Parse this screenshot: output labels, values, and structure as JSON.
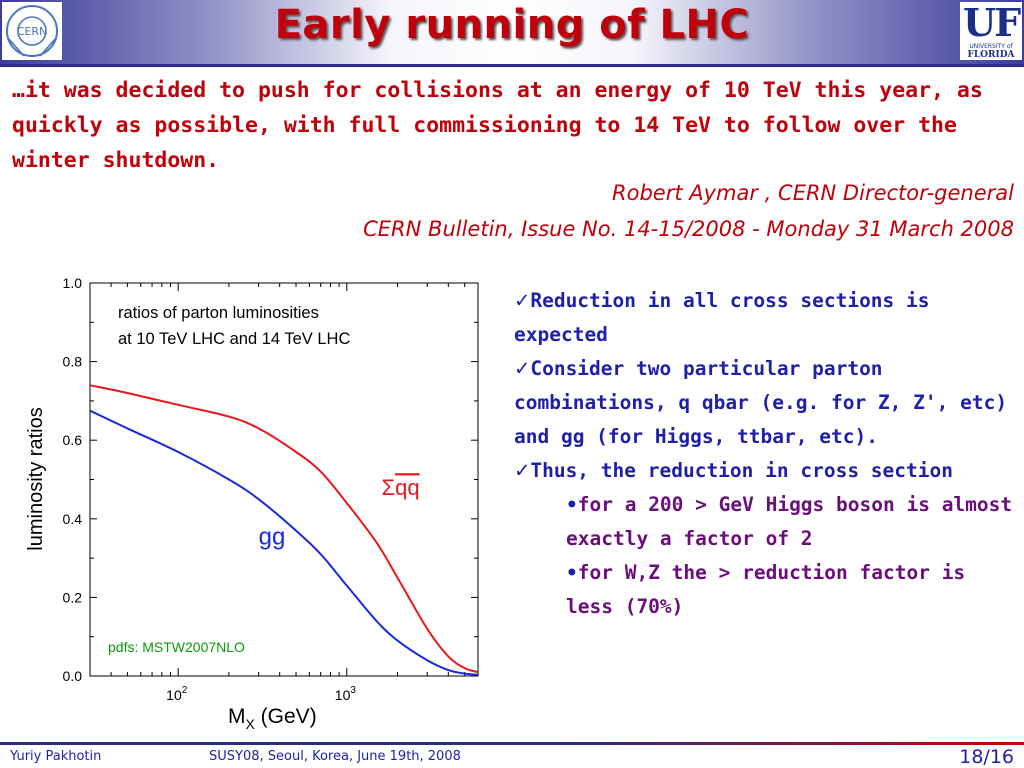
{
  "slide": {
    "title": "Early running of LHC",
    "logos": {
      "left": "CERN",
      "right_main": "UF",
      "right_sub": "UNIVERSITY of",
      "right_sub2": "FLORIDA"
    }
  },
  "quote": {
    "text": "…it was decided to push for collisions at an energy of 10 TeV this year, as quickly as possible, with full commissioning to 14 TeV to follow over the winter shutdown.",
    "author": "Robert Aymar , CERN Director-general",
    "source": "CERN Bulletin, Issue No. 14-15/2008 - Monday 31 March 2008"
  },
  "bullets": {
    "item1": "Reduction in all cross sections is expected",
    "item2": "Consider two particular parton combinations, q qbar (e.g. for Z, Z', etc) and gg (for Higgs, ttbar, etc).",
    "item3": "Thus, the reduction in cross section",
    "sub1": "for a 200 > GeV Higgs boson is almost exactly a factor of 2",
    "sub2": "for W,Z the > reduction factor is less (70%)",
    "check_glyph": "✓",
    "dot_glyph": "•"
  },
  "footer": {
    "author": "Yuriy Pakhotin",
    "event": "SUSY08, Seoul, Korea, June 19th, 2008",
    "page": "18/16"
  },
  "chart_data": {
    "type": "line",
    "title_line1": "ratios of parton luminosities",
    "title_line2": "at 10 TeV LHC and 14 TeV LHC",
    "annotation": "pdfs: MSTW2007NLO",
    "xlabel_main": "M",
    "xlabel_sub": "X",
    "xlabel_unit": " (GeV)",
    "ylabel": "luminosity ratios",
    "x_scale": "log",
    "xlim": [
      30,
      6000
    ],
    "ylim": [
      0.0,
      1.0
    ],
    "y_ticks": [
      "0.0",
      "0.2",
      "0.4",
      "0.6",
      "0.8",
      "1.0"
    ],
    "x_ticks": [
      {
        "base": "10",
        "exp": "2",
        "value": 100
      },
      {
        "base": "10",
        "exp": "3",
        "value": 1000
      }
    ],
    "grid": false,
    "series": [
      {
        "name": "Σqq̄",
        "label_main": "Σ",
        "label_qq": "qq",
        "color": "#e8171a",
        "x": [
          30,
          50,
          100,
          200,
          300,
          500,
          700,
          1000,
          1500,
          2000,
          3000,
          4000,
          5000,
          6000
        ],
        "y": [
          0.74,
          0.72,
          0.69,
          0.66,
          0.63,
          0.57,
          0.52,
          0.44,
          0.34,
          0.25,
          0.12,
          0.05,
          0.02,
          0.01
        ]
      },
      {
        "name": "gg",
        "label_main": "gg",
        "color": "#1a28e0",
        "x": [
          30,
          50,
          100,
          200,
          300,
          500,
          700,
          1000,
          1500,
          2000,
          3000,
          4000,
          5000,
          6000
        ],
        "y": [
          0.675,
          0.63,
          0.57,
          0.5,
          0.45,
          0.37,
          0.31,
          0.23,
          0.14,
          0.09,
          0.04,
          0.015,
          0.006,
          0.003
        ]
      }
    ]
  }
}
